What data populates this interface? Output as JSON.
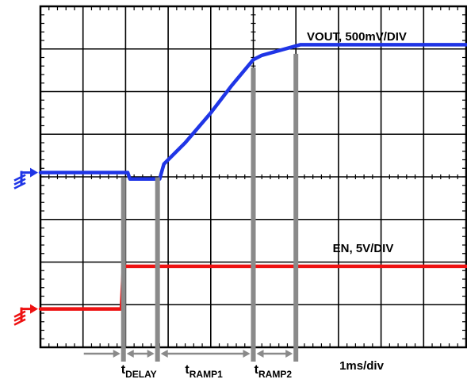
{
  "chart_data": {
    "type": "line",
    "title": "",
    "xlabel": "1ms/div",
    "ylabel": "",
    "grid": true,
    "divisions": {
      "x": 10,
      "y": 8
    },
    "x_unit": "ms",
    "x_per_div": 1,
    "xlim": [
      0,
      10
    ],
    "series": [
      {
        "name": "VOUT, 500mV/DIV",
        "color": "#1f35e6",
        "ground_div": 3.9,
        "points": [
          [
            0,
            0
          ],
          [
            2.05,
            0
          ],
          [
            2.1,
            -0.15
          ],
          [
            2.8,
            -0.15
          ],
          [
            2.9,
            0.2
          ],
          [
            3.4,
            0.7
          ],
          [
            4.0,
            1.4
          ],
          [
            4.5,
            2.05
          ],
          [
            5.0,
            2.65
          ],
          [
            5.2,
            2.75
          ],
          [
            6.1,
            3.0
          ],
          [
            10,
            3.0
          ]
        ]
      },
      {
        "name": "EN, 5V/DIV",
        "color": "#ee1111",
        "ground_div": 7.1,
        "points": [
          [
            0,
            0
          ],
          [
            1.9,
            0
          ],
          [
            1.95,
            1.0
          ],
          [
            10,
            1.0
          ]
        ]
      }
    ],
    "markers": [
      {
        "name": "tDELAY",
        "main": "t",
        "sub": "DELAY",
        "start": 1.95,
        "end": 2.75
      },
      {
        "name": "tRAMP1",
        "main": "t",
        "sub": "RAMP1",
        "start": 2.75,
        "end": 5.0
      },
      {
        "name": "tRAMP2",
        "main": "t",
        "sub": "RAMP2",
        "start": 5.0,
        "end": 6.0
      }
    ]
  }
}
